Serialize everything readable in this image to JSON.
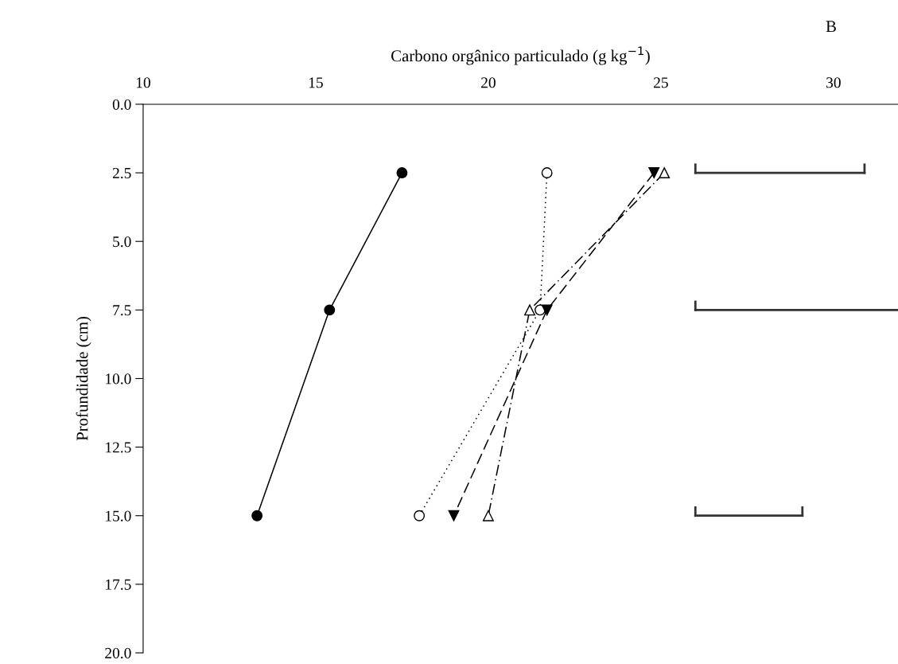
{
  "chart_data": {
    "type": "line",
    "xlabel": "Carbono orgânico particulado (g kg$^{−1}$)",
    "ylabel": "Profundidade (cm)",
    "annotations": [
      "B"
    ],
    "xlim": [
      10,
      31.87
    ],
    "xticks": [
      10,
      15,
      20,
      25,
      30
    ],
    "ylim": [
      20,
      0
    ],
    "yticks": [
      {
        "value": 0,
        "label": "0.0"
      },
      {
        "value": 2.5,
        "label": "2.5"
      },
      {
        "value": 5,
        "label": "5.0"
      },
      {
        "value": 7.5,
        "label": "7.5"
      },
      {
        "value": 10,
        "label": "10.0"
      },
      {
        "value": 12.5,
        "label": "12.5"
      },
      {
        "value": 15,
        "label": "15.0"
      },
      {
        "value": 17.5,
        "label": "17.5"
      },
      {
        "value": 20,
        "label": "20.0"
      }
    ],
    "grid": false,
    "legend": false,
    "series": [
      {
        "color": "#000000",
        "x": [
          17.5,
          15.4,
          13.3
        ],
        "values": [
          2.5,
          7.5,
          15
        ],
        "marker": "circle",
        "line_style": "solid"
      },
      {
        "color": "#000000",
        "x": [
          21.7,
          21.5,
          18.0
        ],
        "values": [
          2.5,
          7.5,
          15
        ],
        "marker": "circle-open",
        "line_style": "dotted"
      },
      {
        "color": "#000000",
        "x": [
          24.8,
          21.7,
          19.0
        ],
        "values": [
          2.5,
          7.5,
          15
        ],
        "marker": "triangle_down",
        "line_style": "dashed"
      },
      {
        "color": "#000000",
        "x": [
          25.1,
          21.2,
          20.0
        ],
        "values": [
          2.5,
          7.5,
          15
        ],
        "marker": "triangle-open",
        "line_style": "dashdot"
      },
      {
        "color": "#333333",
        "x": [
          26,
          30.9,
          null,
          26,
          31.87,
          null,
          26,
          29.1
        ],
        "values": [
          2.5,
          2.5,
          null,
          7.5,
          7.5,
          null,
          15,
          15
        ],
        "marker": "none",
        "line_style": "solid"
      }
    ]
  }
}
